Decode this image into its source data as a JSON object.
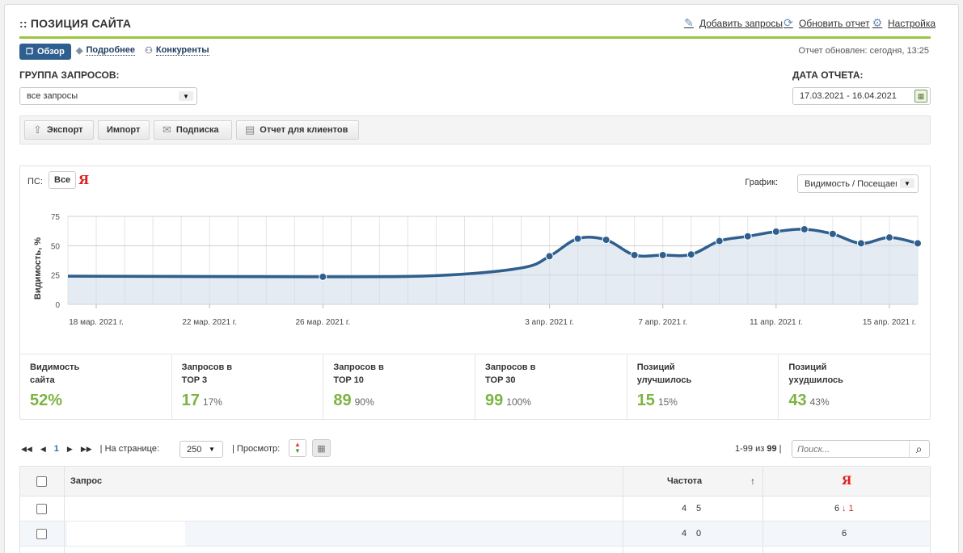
{
  "header": {
    "title": ":: ПОЗИЦИЯ САЙТА",
    "links": [
      "Добавить запросы",
      "Обновить отчет",
      "Настройка"
    ]
  },
  "tabs": {
    "overview": "Обзор",
    "details": "Подробнее",
    "competitors": "Конкуренты"
  },
  "updated": "Отчет обновлен: сегодня, 13:25",
  "group": {
    "label": "ГРУППА ЗАПРОСОВ:",
    "value": "все запросы"
  },
  "date": {
    "label": "ДАТА ОТЧЕТА:",
    "value": "17.03.2021 - 16.04.2021"
  },
  "toolbar": [
    "Экспорт",
    "Импорт",
    "Подписка",
    "Отчет для клиентов"
  ],
  "chart_panel": {
    "ps_label": "ПС:",
    "ps_all": "Все",
    "ps_yandex": "Я",
    "graph_label": "График:",
    "graph_select": "Видимость / Посещаемость"
  },
  "chart_data": {
    "type": "area",
    "ylabel": "Видимость, %",
    "ylim": [
      0,
      75
    ],
    "yticks": [
      "0",
      "25",
      "50",
      "75"
    ],
    "xticks": [
      "18 мар. 2021 г.",
      "22 мар. 2021 г.",
      "26 мар. 2021 г.",
      "3 апр. 2021 г.",
      "7 апр. 2021 г.",
      "11 апр. 2021 г.",
      "15 апр. 2021 г."
    ],
    "xtick_days": [
      1,
      5,
      9,
      17,
      21,
      25,
      29
    ],
    "series": [
      {
        "days": [
          0,
          9,
          13,
          16,
          17,
          18,
          19,
          20,
          21,
          22,
          23,
          24,
          25,
          26,
          27,
          28,
          29,
          30
        ],
        "values": [
          24,
          23.5,
          24.5,
          31,
          41,
          56,
          55,
          42,
          42,
          42.5,
          54,
          58,
          62,
          64,
          60,
          52,
          57,
          52
        ],
        "markers": [
          9,
          17,
          18,
          19,
          20,
          21,
          22,
          23,
          24,
          25,
          26,
          27,
          28,
          29,
          30
        ]
      }
    ],
    "grid": true,
    "color": "#2e5f8e"
  },
  "stats": [
    {
      "label": "Видимость\nсайта",
      "value": "52%",
      "pct": ""
    },
    {
      "label": "Запросов в\nTOP 3",
      "value": "17",
      "pct": "17%"
    },
    {
      "label": "Запросов в\nTOP 10",
      "value": "89",
      "pct": "90%"
    },
    {
      "label": "Запросов в\nTOP 30",
      "value": "99",
      "pct": "100%"
    },
    {
      "label": "Позиций\nулучшилось",
      "value": "15",
      "pct": "15%"
    },
    {
      "label": "Позиций\nухудшилось",
      "value": "43",
      "pct": "43%"
    }
  ],
  "pager": {
    "page": "1",
    "per_page_label": "| На странице:",
    "per_page": "250",
    "view_label": "| Просмотр:",
    "range": "1-99 из ",
    "total": "99",
    "range_sep": " |",
    "search_placeholder": "Поиск..."
  },
  "table": {
    "col_query": "Запрос",
    "col_freq": "Частота",
    "sort_arrow": "↑",
    "col_yandex": "Я",
    "rows": [
      {
        "freq_a": "4",
        "freq_b": "5",
        "pos": "6",
        "delta": "↓ 1"
      },
      {
        "freq_a": "4",
        "freq_b": "0",
        "pos": "6",
        "delta": ""
      }
    ]
  }
}
